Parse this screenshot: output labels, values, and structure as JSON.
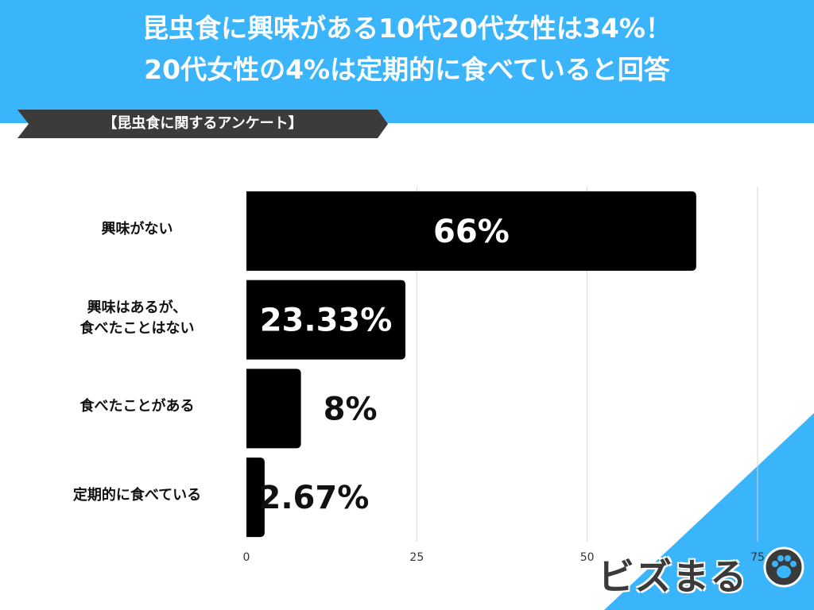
{
  "header": {
    "title_line1": "昆虫食に興味がある10代20代女性は34%！",
    "title_line2": "20代女性の4%は定期的に食べていると回答",
    "section_label": "【昆虫食に関するアンケート】"
  },
  "colors": {
    "accent": "#3ab4fb",
    "bar": "#000000",
    "ribbon": "#3b3b3b"
  },
  "logo": {
    "text": "ビズまる",
    "icon": "paw-icon"
  },
  "chart_data": {
    "type": "bar",
    "orientation": "horizontal",
    "categories": [
      "興味がない",
      "興味はあるが、\n食べたことはない",
      "食べたことがある",
      "定期的に食べている"
    ],
    "category_lines": [
      [
        "興味がない"
      ],
      [
        "興味はあるが、",
        "食べたことはない"
      ],
      [
        "食べたことがある"
      ],
      [
        "定期的に食べている"
      ]
    ],
    "values": [
      66,
      23.33,
      8,
      2.67
    ],
    "data_labels": [
      "66%",
      "23.33%",
      "8%",
      "2.67%"
    ],
    "xlim": [
      0,
      75
    ],
    "xticks": [
      0,
      25,
      50,
      75
    ],
    "xlabel": "",
    "ylabel": "",
    "grid": true
  }
}
